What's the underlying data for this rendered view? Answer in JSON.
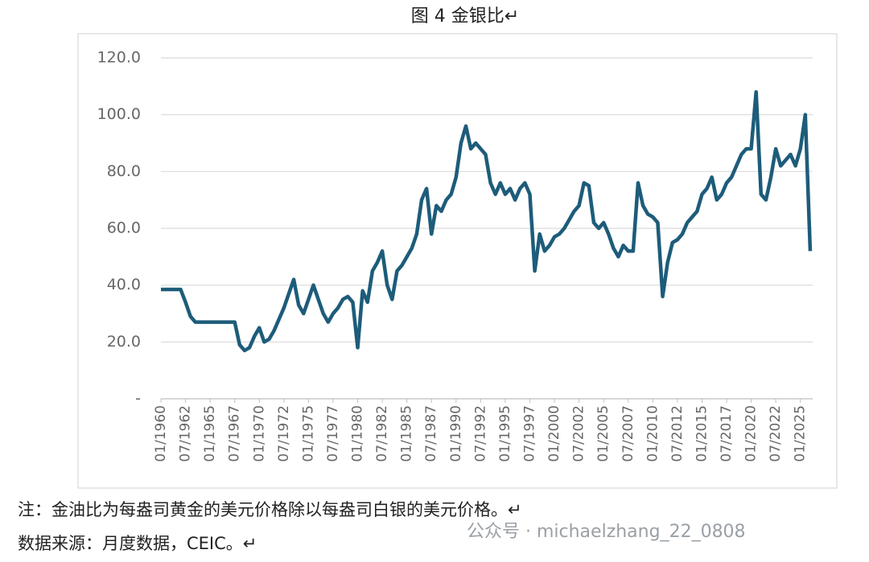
{
  "title": "图 4  金银比↵",
  "note": "注：金油比为每盎司黄金的美元价格除以每盎司白银的美元价格。↵",
  "source": "数据来源：月度数据，CEIC。↵",
  "watermark": "公众号 · michaelzhang_22_0808",
  "chart_data": {
    "type": "line",
    "x": [
      "01/1960",
      "07/1960",
      "01/1961",
      "07/1961",
      "01/1962",
      "07/1962",
      "01/1963",
      "07/1963",
      "01/1964",
      "07/1964",
      "01/1965",
      "07/1965",
      "01/1966",
      "07/1966",
      "01/1967",
      "07/1967",
      "01/1968",
      "07/1968",
      "01/1969",
      "07/1969",
      "01/1970",
      "07/1970",
      "01/1971",
      "07/1971",
      "01/1972",
      "07/1972",
      "01/1973",
      "07/1973",
      "01/1974",
      "07/1974",
      "01/1975",
      "07/1975",
      "01/1976",
      "07/1976",
      "01/1977",
      "07/1977",
      "01/1978",
      "07/1978",
      "01/1979",
      "07/1979",
      "01/1980",
      "07/1980",
      "01/1981",
      "07/1981",
      "01/1982",
      "07/1982",
      "01/1983",
      "07/1983",
      "01/1984",
      "07/1984",
      "01/1985",
      "07/1985",
      "01/1986",
      "07/1986",
      "01/1987",
      "07/1987",
      "01/1988",
      "07/1988",
      "01/1989",
      "07/1989",
      "01/1990",
      "07/1990",
      "01/1991",
      "07/1991",
      "01/1992",
      "07/1992",
      "01/1993",
      "07/1993",
      "01/1994",
      "07/1994",
      "01/1995",
      "07/1995",
      "01/1996",
      "07/1996",
      "01/1997",
      "07/1997",
      "01/1998",
      "07/1998",
      "01/1999",
      "07/1999",
      "01/2000",
      "07/2000",
      "01/2001",
      "07/2001",
      "01/2002",
      "07/2002",
      "01/2003",
      "07/2003",
      "01/2004",
      "07/2004",
      "01/2005",
      "07/2005",
      "01/2006",
      "07/2006",
      "01/2007",
      "07/2007",
      "01/2008",
      "07/2008",
      "01/2009",
      "07/2009",
      "01/2010",
      "07/2010",
      "01/2011",
      "07/2011",
      "01/2012",
      "07/2012",
      "01/2013",
      "07/2013",
      "01/2014",
      "07/2014",
      "01/2015",
      "07/2015",
      "01/2016",
      "07/2016",
      "01/2017",
      "07/2017",
      "01/2018",
      "07/2018",
      "01/2019",
      "07/2019",
      "01/2020",
      "07/2020",
      "01/2021",
      "07/2021",
      "01/2022",
      "07/2022",
      "01/2023",
      "07/2023",
      "01/2024",
      "07/2024",
      "01/2025",
      "07/2025",
      "01/2026"
    ],
    "series": [
      {
        "color": "#1d5c7a",
        "values": [
          38.5,
          38.5,
          38.5,
          38.5,
          38.5,
          34,
          29,
          27,
          27,
          27,
          27,
          27,
          27,
          27,
          27,
          27,
          19,
          17,
          18,
          22,
          25,
          20,
          21,
          24,
          28,
          32,
          37,
          42,
          33,
          30,
          35,
          40,
          35,
          30,
          27,
          30,
          32,
          35,
          36,
          34,
          18,
          38,
          34,
          45,
          48,
          52,
          40,
          35,
          45,
          47,
          50,
          53,
          58,
          70,
          74,
          58,
          68,
          66,
          70,
          72,
          78,
          90,
          96,
          88,
          90,
          88,
          86,
          76,
          72,
          76,
          72,
          74,
          70,
          74,
          76,
          72,
          45,
          58,
          52,
          54,
          57,
          58,
          60,
          63,
          66,
          68,
          76,
          75,
          62,
          60,
          62,
          58,
          53,
          50,
          54,
          52,
          52,
          76,
          68,
          65,
          64,
          62,
          36,
          48,
          55,
          56,
          58,
          62,
          64,
          66,
          72,
          74,
          78,
          70,
          72,
          76,
          78,
          82,
          86,
          88,
          88,
          108,
          72,
          70,
          78,
          88,
          82,
          84,
          86,
          82,
          88,
          100,
          52
        ]
      }
    ],
    "xlim": [
      "01/1960",
      "04/2026"
    ],
    "xticks": [
      "01/1960",
      "07/1962",
      "01/1965",
      "07/1967",
      "01/1970",
      "07/1972",
      "01/1975",
      "07/1977",
      "01/1980",
      "07/1982",
      "01/1985",
      "07/1987",
      "01/1990",
      "07/1992",
      "01/1995",
      "07/1997",
      "01/2000",
      "07/2002",
      "01/2005",
      "07/2007",
      "01/2010",
      "07/2012",
      "01/2015",
      "07/2017",
      "01/2020",
      "07/2022",
      "01/2025"
    ],
    "ylim": [
      0,
      120
    ],
    "yticks": [
      {
        "value": 0,
        "label": "-"
      },
      {
        "value": 20,
        "label": "20.0"
      },
      {
        "value": 40,
        "label": "40.0"
      },
      {
        "value": 60,
        "label": "60.0"
      },
      {
        "value": 80,
        "label": "80.0"
      },
      {
        "value": 100,
        "label": "100.0"
      },
      {
        "value": 120,
        "label": "120.0"
      }
    ],
    "grid": true
  }
}
